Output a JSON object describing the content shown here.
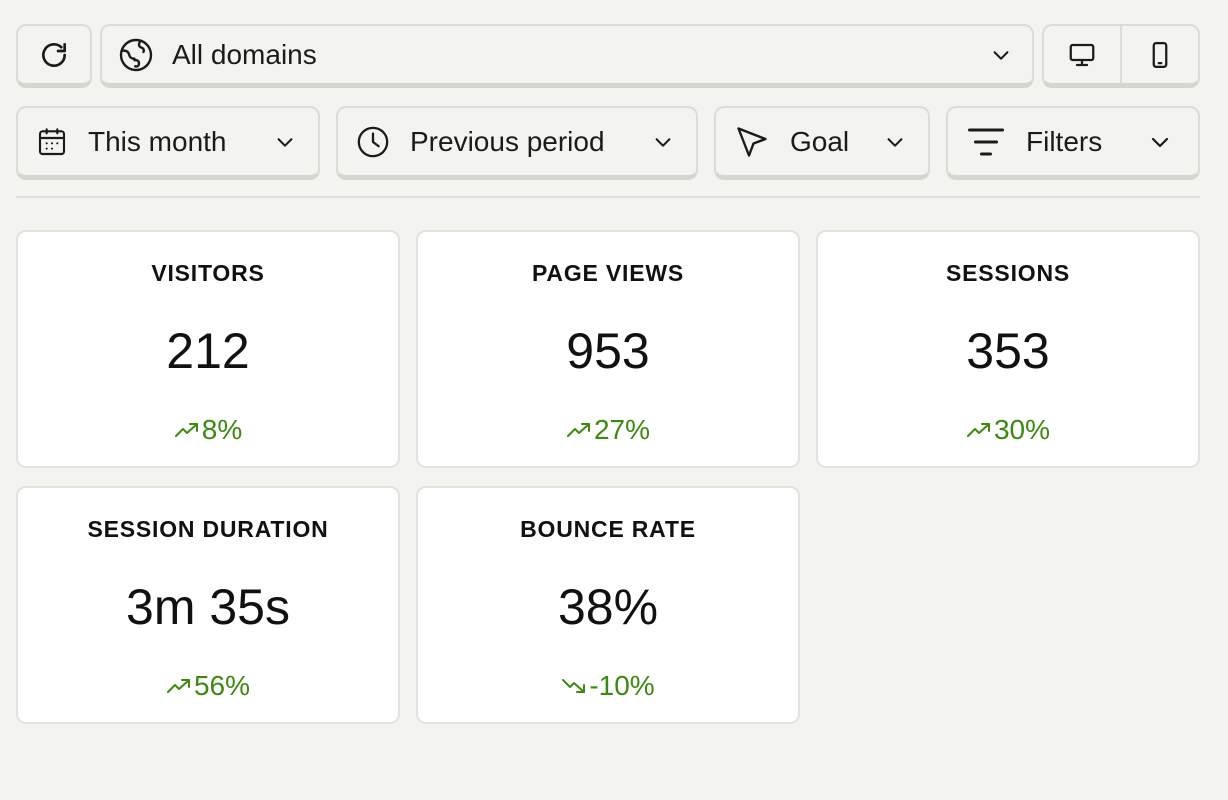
{
  "toolbar": {
    "refresh_icon": "refresh-icon",
    "domain_select": {
      "value": "All domains",
      "icon": "globe-icon"
    },
    "devices": [
      "desktop-icon",
      "mobile-icon"
    ]
  },
  "filters": {
    "period": {
      "value": "This month",
      "icon": "calendar-icon"
    },
    "compare": {
      "value": "Previous period",
      "icon": "clock-icon"
    },
    "goal": {
      "value": "Goal",
      "icon": "cursor-arrow-icon"
    },
    "filters": {
      "value": "Filters",
      "icon": "filter-lines-icon"
    }
  },
  "metrics": [
    {
      "title": "VISITORS",
      "value": "212",
      "change": "8%",
      "trend": "up"
    },
    {
      "title": "PAGE VIEWS",
      "value": "953",
      "change": "27%",
      "trend": "up"
    },
    {
      "title": "SESSIONS",
      "value": "353",
      "change": "30%",
      "trend": "up"
    },
    {
      "title": "SESSION DURATION",
      "value": "3m 35s",
      "change": "56%",
      "trend": "up"
    },
    {
      "title": "BOUNCE RATE",
      "value": "38%",
      "change": "-10%",
      "trend": "down"
    }
  ],
  "colors": {
    "positive": "#3d8a12",
    "background": "#f3f3ef",
    "card": "#ffffff"
  }
}
